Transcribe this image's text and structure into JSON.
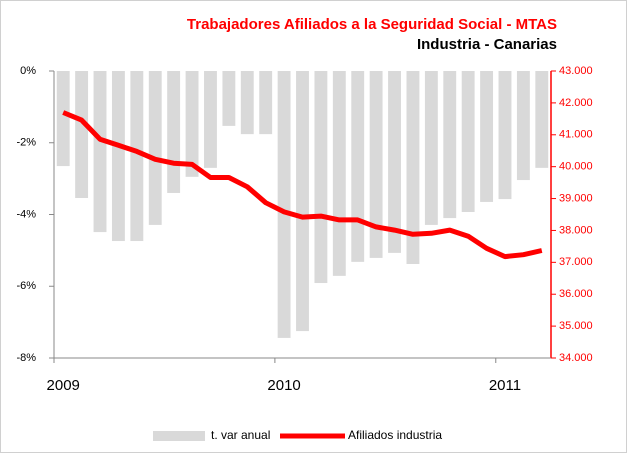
{
  "chart_data": {
    "type": "combo",
    "title": "Trabajadores Afiliados a la Seguridad Social - MTAS",
    "subtitle": "Industria - Canarias",
    "categories": [
      "2009",
      null,
      null,
      null,
      null,
      null,
      null,
      null,
      null,
      null,
      null,
      null,
      "2010",
      null,
      null,
      null,
      null,
      null,
      null,
      null,
      null,
      null,
      null,
      null,
      "2011",
      null,
      null
    ],
    "series": [
      {
        "name": "t. var anual",
        "type": "bar",
        "color": "#d9d9d9",
        "values": [
          -2.65,
          -3.54,
          -4.49,
          -4.74,
          -4.74,
          -4.29,
          -3.4,
          -2.95,
          -2.7,
          -1.53,
          -1.76,
          -1.76,
          -7.44,
          -7.25,
          -5.91,
          -5.71,
          -5.32,
          -5.21,
          -5.07,
          -5.38,
          -4.29,
          -4.1,
          -3.93,
          -3.65,
          -3.57,
          -3.04,
          -2.7
        ]
      },
      {
        "name": "Afiliados industria",
        "type": "line",
        "axis": "y2",
        "color": "#ff0000",
        "values": [
          41700,
          41460,
          40860,
          40670,
          40480,
          40230,
          40110,
          40070,
          39660,
          39660,
          39370,
          38870,
          38580,
          38420,
          38450,
          38330,
          38330,
          38110,
          38010,
          37880,
          37910,
          38010,
          37820,
          37440,
          37180,
          37240,
          37370
        ]
      }
    ],
    "ylim": [
      -8,
      0
    ],
    "yticks": [
      {
        "value": 0,
        "label": "0%"
      },
      {
        "value": -2,
        "label": "-2%"
      },
      {
        "value": -4,
        "label": "-4%"
      },
      {
        "value": -6,
        "label": "-6%"
      },
      {
        "value": -8,
        "label": "-8%"
      }
    ],
    "y2lim": [
      34000,
      43000
    ],
    "y2ticks": [
      {
        "value": 43000,
        "label": "43.000"
      },
      {
        "value": 42000,
        "label": "42.000"
      },
      {
        "value": 41000,
        "label": "41.000"
      },
      {
        "value": 40000,
        "label": "40.000"
      },
      {
        "value": 39000,
        "label": "39.000"
      },
      {
        "value": 38000,
        "label": "38.000"
      },
      {
        "value": 37000,
        "label": "37.000"
      },
      {
        "value": 36000,
        "label": "36.000"
      },
      {
        "value": 35000,
        "label": "35.000"
      },
      {
        "value": 34000,
        "label": "34.000"
      }
    ],
    "y2color": "#ff0000"
  }
}
